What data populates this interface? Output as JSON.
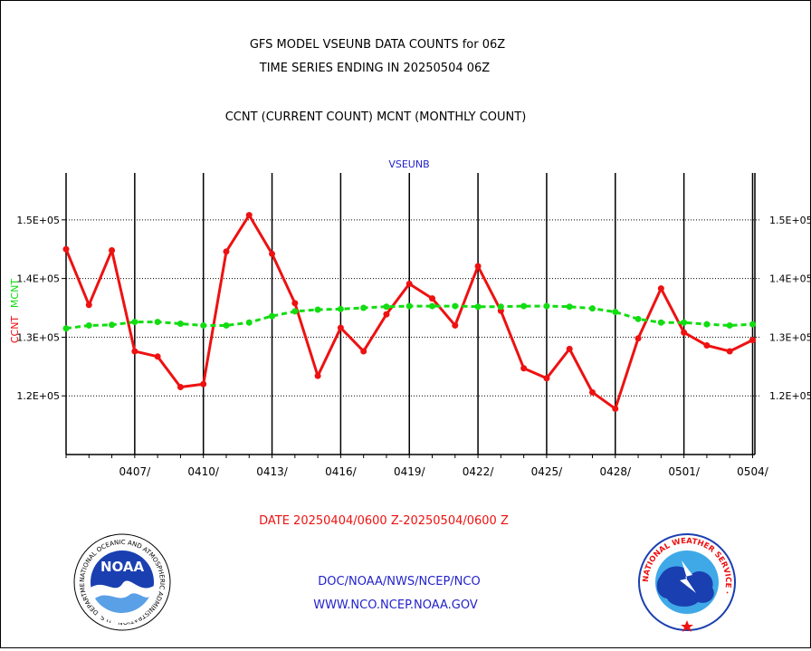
{
  "header": {
    "line1": "GFS MODEL VSEUNB DATA COUNTS for 06Z",
    "line2": "TIME SERIES ENDING IN 20250504 06Z",
    "line3": "CCNT (CURRENT COUNT) MCNT (MONTHLY COUNT)"
  },
  "footer": {
    "date_range": "DATE 20250404/0600 Z-20250504/0600 Z",
    "org": "DOC/NOAA/NWS/NCEP/NCO",
    "url": "WWW.NCO.NCEP.NOAA.GOV"
  },
  "logos": {
    "noaa_label": "NOAA",
    "noaa_ring": "NATIONAL OCEANIC AND ATMOSPHERIC ADMINISTRATION · U.S. DEPARTMENT OF COMMERCE ·",
    "nws_ring": "NATIONAL WEATHER SERVICE ·"
  },
  "colors": {
    "ccnt": "#ee1111",
    "mcnt": "#11dd11",
    "title": "#000000",
    "plot_title": "#2222cc",
    "footer_date": "#ee1111",
    "footer_links": "#2222cc"
  },
  "chart_data": {
    "type": "line",
    "title": "VSEUNB",
    "ylabel_left": "CCNT",
    "ylabel_left_secondary": "MCNT",
    "left_ticks": [
      {
        "value": 150000,
        "label": "1.5E+05"
      },
      {
        "value": 140000,
        "label": "1.4E+05"
      },
      {
        "value": 130000,
        "label": "1.3E+05"
      },
      {
        "value": 120000,
        "label": "1.2E+05"
      }
    ],
    "right_ticks": [
      {
        "value": 150000,
        "label": "1.5E+05"
      },
      {
        "value": 140000,
        "label": "1.4E+05"
      },
      {
        "value": 130000,
        "label": "1.3E+05"
      },
      {
        "value": 120000,
        "label": "1.2E+05"
      }
    ],
    "ylim": [
      110000,
      158000
    ],
    "xlim": [
      0,
      30.1
    ],
    "x_ticks": [
      {
        "day": 3,
        "label": "0407/"
      },
      {
        "day": 6,
        "label": "0410/"
      },
      {
        "day": 9,
        "label": "0413/"
      },
      {
        "day": 12,
        "label": "0416/"
      },
      {
        "day": 15,
        "label": "0419/"
      },
      {
        "day": 18,
        "label": "0422/"
      },
      {
        "day": 21,
        "label": "0425/"
      },
      {
        "day": 24,
        "label": "0428/"
      },
      {
        "day": 27,
        "label": "0501/"
      },
      {
        "day": 30,
        "label": "0504/"
      }
    ],
    "x": [
      "0404",
      "0405",
      "0406",
      "0407",
      "0408",
      "0409",
      "0410",
      "0411",
      "0412",
      "0413",
      "0414",
      "0415",
      "0416",
      "0417",
      "0418",
      "0419",
      "0420",
      "0421",
      "0422",
      "0423",
      "0424",
      "0425",
      "0426",
      "0427",
      "0428",
      "0429",
      "0430",
      "0501",
      "0502",
      "0503",
      "0504"
    ],
    "series": [
      {
        "name": "CCNT",
        "color": "#ee1111",
        "values": [
          145000,
          135500,
          144800,
          127600,
          126700,
          121500,
          122000,
          144600,
          150800,
          144200,
          135800,
          123400,
          131600,
          127600,
          133900,
          139100,
          136600,
          132000,
          142100,
          134500,
          124700,
          123000,
          128000,
          120600,
          117800,
          129800,
          138300,
          130800,
          128600,
          127600,
          129500
        ]
      },
      {
        "name": "MCNT",
        "color": "#11dd11",
        "values": [
          131500,
          132000,
          132100,
          132600,
          132600,
          132300,
          132000,
          132000,
          132500,
          133600,
          134400,
          134700,
          134800,
          135000,
          135200,
          135300,
          135300,
          135300,
          135200,
          135200,
          135300,
          135300,
          135200,
          134900,
          134300,
          133100,
          132500,
          132500,
          132200,
          132000,
          132200
        ]
      }
    ]
  }
}
